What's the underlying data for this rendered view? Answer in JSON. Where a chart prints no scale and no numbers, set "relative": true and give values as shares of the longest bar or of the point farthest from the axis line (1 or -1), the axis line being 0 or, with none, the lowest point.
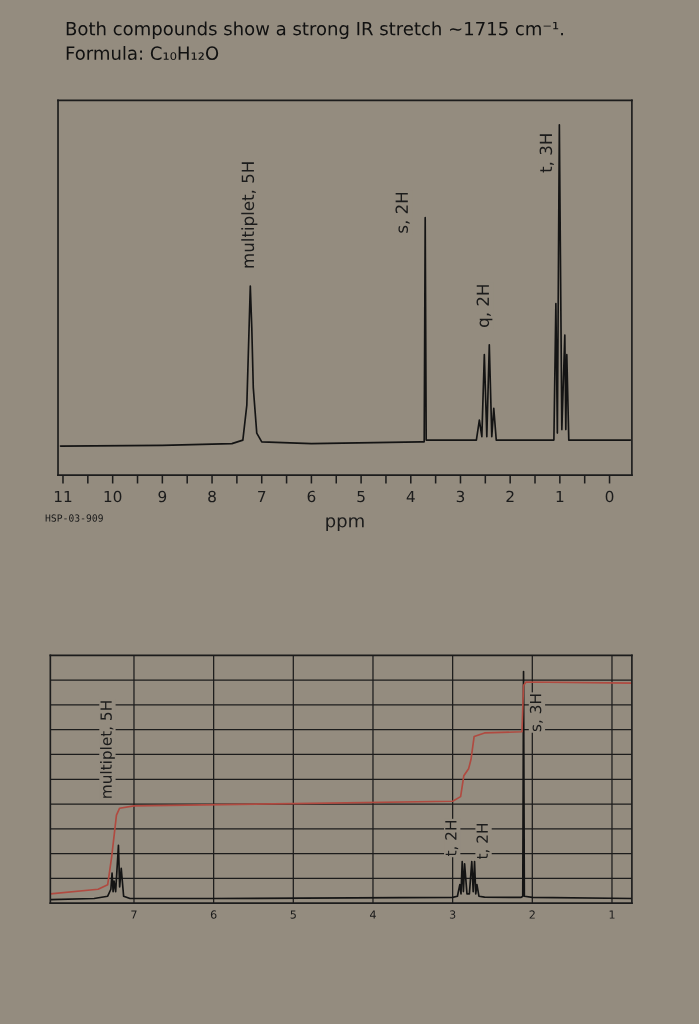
{
  "chart_data": [
    {
      "type": "line",
      "title": "Both compounds show a strong IR stretch ~1715 cm⁻¹.",
      "subtitle": "Formula: C₁₀H₁₂O",
      "xlabel": "ppm",
      "relative": true,
      "tick_labels": "x",
      "xlim": [
        11.1,
        -0.45
      ],
      "xticks": [
        11,
        {
          "value": 10.5,
          "label": null
        },
        10,
        {
          "value": 9.5,
          "label": null
        },
        9,
        {
          "value": 8.5,
          "label": null
        },
        8,
        {
          "value": 7.5,
          "label": null
        },
        7,
        {
          "value": 6.5,
          "label": null
        },
        6,
        {
          "value": 5.5,
          "label": null
        },
        5,
        {
          "value": 4.5,
          "label": null
        },
        4,
        {
          "value": 3.5,
          "label": null
        },
        3,
        {
          "value": 2.5,
          "label": null
        },
        2,
        {
          "value": 1.5,
          "label": null
        },
        1,
        {
          "value": 0.5,
          "label": null
        },
        0
      ],
      "series": [
        {
          "color": "#141414",
          "x": [
            11.05,
            9.0,
            7.6,
            7.38,
            7.3,
            7.23,
            7.2,
            7.17,
            7.1,
            7.0,
            6.0,
            3.8,
            3.73,
            3.71,
            3.69,
            3.6,
            2.68,
            2.62,
            2.57,
            2.52,
            2.47,
            2.42,
            2.37,
            2.33,
            2.28,
            1.2,
            1.12,
            1.08,
            1.05,
            1.01,
            0.96,
            0.9,
            0.88,
            0.86,
            0.82,
            0.5,
            -0.42
          ],
          "values": [
            0.083,
            0.085,
            0.09,
            0.1,
            0.2,
            0.54,
            0.42,
            0.25,
            0.12,
            0.095,
            0.09,
            0.095,
            0.095,
            0.735,
            0.1,
            0.1,
            0.1,
            0.157,
            0.11,
            0.344,
            0.11,
            0.372,
            0.11,
            0.191,
            0.1,
            0.1,
            0.1,
            0.49,
            0.12,
            1.0,
            0.13,
            0.4,
            0.13,
            0.344,
            0.1,
            0.1,
            0.1
          ]
        }
      ],
      "annotations": [
        {
          "text": "multiplet, 5H",
          "x": 7.23,
          "y": 0.54
        },
        {
          "text": "s, 2H",
          "x": 3.71,
          "y": 0.735
        },
        {
          "text": "q, 2H",
          "x": 2.42,
          "y": 0.372
        },
        {
          "text": "t, 3H",
          "x": 1.01,
          "y": 1.0
        },
        "HSP-03-909"
      ]
    },
    {
      "type": "line",
      "relative": true,
      "tick_labels": "x",
      "grid": true,
      "xlim": [
        8.05,
        0.75
      ],
      "xticks": [
        7,
        6,
        5,
        4,
        3,
        2,
        1
      ],
      "series": [
        {
          "color": "#141414",
          "x": [
            8.05,
            7.5,
            7.33,
            7.29,
            7.275,
            7.262,
            7.25,
            7.23,
            7.195,
            7.18,
            7.16,
            7.13,
            7.05,
            6.0,
            3.0,
            2.94,
            2.91,
            2.895,
            2.88,
            2.865,
            2.85,
            2.82,
            2.79,
            2.76,
            2.742,
            2.725,
            2.71,
            2.695,
            2.67,
            2.6,
            2.14,
            2.12,
            2.11,
            2.1,
            2.0,
            0.75
          ],
          "values": [
            0.015,
            0.02,
            0.03,
            0.06,
            0.13,
            0.05,
            0.095,
            0.05,
            0.25,
            0.07,
            0.15,
            0.03,
            0.02,
            0.02,
            0.025,
            0.03,
            0.08,
            0.04,
            0.18,
            0.05,
            0.17,
            0.04,
            0.04,
            0.18,
            0.05,
            0.18,
            0.04,
            0.08,
            0.03,
            0.026,
            0.025,
            0.03,
            1.0,
            0.03,
            0.025,
            0.02
          ]
        },
        {
          "color": "#b04a40",
          "x": [
            8.05,
            7.45,
            7.33,
            7.28,
            7.22,
            7.18,
            7.0,
            5.0,
            3.0,
            2.9,
            2.86,
            2.8,
            2.77,
            2.73,
            2.6,
            2.13,
            2.11,
            2.08,
            0.75
          ],
          "values": [
            0.04,
            0.06,
            0.08,
            0.2,
            0.38,
            0.41,
            0.42,
            0.43,
            0.44,
            0.46,
            0.55,
            0.58,
            0.62,
            0.72,
            0.735,
            0.74,
            0.94,
            0.955,
            0.95
          ]
        }
      ],
      "annotations": [
        {
          "text": "multiplet, 5H",
          "x": 7.22,
          "y": 0.38
        },
        {
          "text": "t, 2H",
          "x": 2.88,
          "y": 0.18
        },
        {
          "text": "t, 2H",
          "x": 2.725,
          "y": 0.18
        },
        {
          "text": "s, 3H",
          "x": 2.08,
          "y": 0.955
        }
      ]
    }
  ]
}
